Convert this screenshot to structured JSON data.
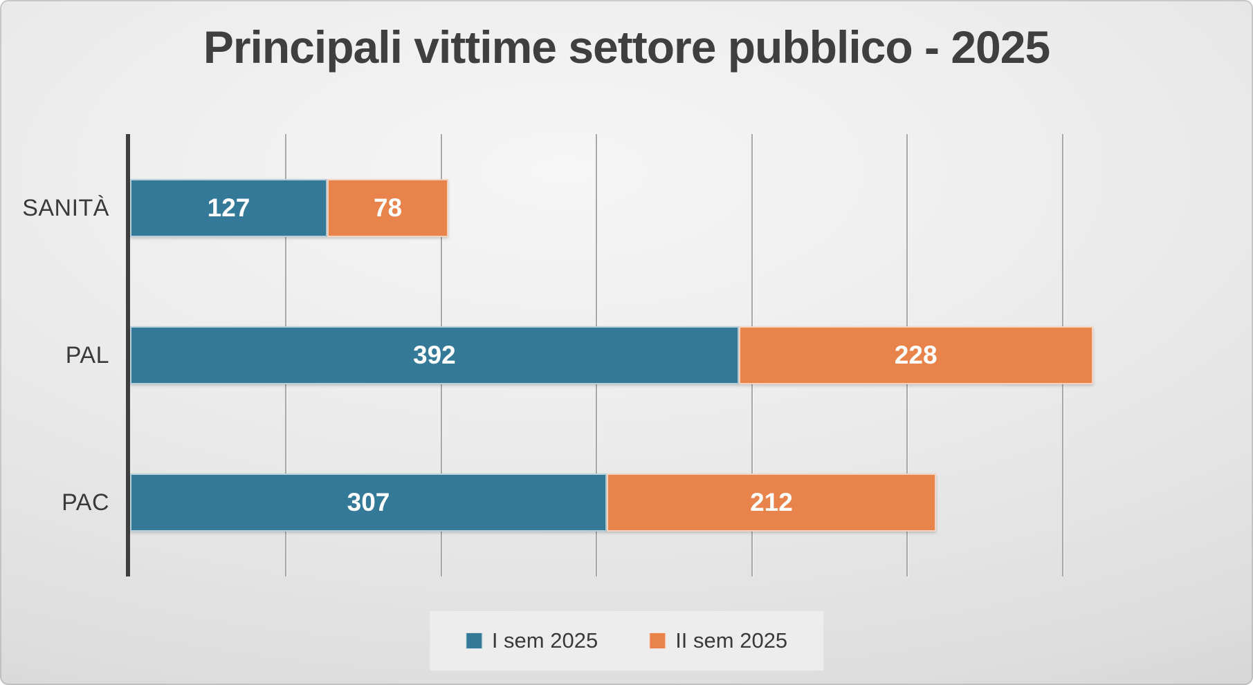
{
  "title": "Principali vittime settore pubblico - 2025",
  "colors": {
    "series_1": "#347A98",
    "series_2": "#E8834C",
    "axis": "#3f3f3f",
    "gridline": "#a8a8a8",
    "title_text": "#3f3f3f",
    "category_text": "#3a3a3a",
    "value_text": "#ffffff",
    "legend_bg": "#eeeeee"
  },
  "chart_data": {
    "type": "bar",
    "orientation": "horizontal",
    "stacked": true,
    "title": "Principali vittime settore pubblico - 2025",
    "categories": [
      "SANITÀ",
      "PAL",
      "PAC"
    ],
    "series": [
      {
        "name": "I sem 2025",
        "color": "#347A98",
        "values": [
          127,
          392,
          307
        ]
      },
      {
        "name": "II sem 2025",
        "color": "#E8834C",
        "values": [
          78,
          228,
          212
        ]
      }
    ],
    "xlabel": "",
    "ylabel": "",
    "xlim": [
      0,
      720
    ],
    "gridline_interval": 100,
    "grid": true,
    "legend_position": "bottom",
    "data_labels": true
  }
}
